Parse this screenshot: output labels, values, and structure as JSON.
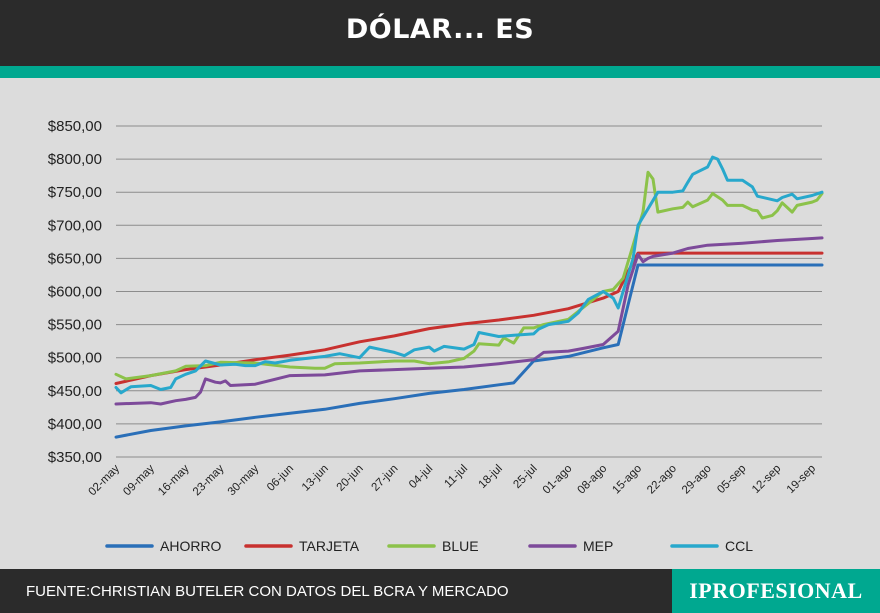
{
  "header": {
    "title": "DÓLAR... ES"
  },
  "footer": {
    "source": "FUENTE:CHRISTIAN BUTELER CON DATOS DEL BCRA Y MERCADO",
    "logo": "IPROFESIONAL"
  },
  "colors": {
    "header_bg": "#2b2b2b",
    "accent": "#00a890",
    "plot_bg": "#dcdcdc",
    "grid": "#8c8c8c"
  },
  "chart_data": {
    "type": "line",
    "title": "",
    "xlabel": "",
    "ylabel": "",
    "ylim": [
      350,
      850
    ],
    "yticks": [
      350,
      400,
      450,
      500,
      550,
      600,
      650,
      700,
      750,
      800,
      850
    ],
    "ytick_labels": [
      "$350,00",
      "$400,00",
      "$450,00",
      "$500,00",
      "$550,00",
      "$600,00",
      "$650,00",
      "$700,00",
      "$750,00",
      "$800,00",
      "$850,00"
    ],
    "xlim": [
      0,
      142
    ],
    "x_ticks": [
      {
        "label": "02-may",
        "x": 0
      },
      {
        "label": "09-may",
        "x": 7
      },
      {
        "label": "16-may",
        "x": 14
      },
      {
        "label": "23-may",
        "x": 21
      },
      {
        "label": "30-may",
        "x": 28
      },
      {
        "label": "06-jun",
        "x": 35
      },
      {
        "label": "13-jun",
        "x": 42
      },
      {
        "label": "20-jun",
        "x": 49
      },
      {
        "label": "27-jun",
        "x": 56
      },
      {
        "label": "04-jul",
        "x": 63
      },
      {
        "label": "11-jul",
        "x": 70
      },
      {
        "label": "18-jul",
        "x": 77
      },
      {
        "label": "25-jul",
        "x": 84
      },
      {
        "label": "01-ago",
        "x": 91
      },
      {
        "label": "08-ago",
        "x": 98
      },
      {
        "label": "15-ago",
        "x": 105
      },
      {
        "label": "22-ago",
        "x": 112
      },
      {
        "label": "29-ago",
        "x": 119
      },
      {
        "label": "05-sep",
        "x": 126
      },
      {
        "label": "12-sep",
        "x": 133
      },
      {
        "label": "19-sep",
        "x": 140
      }
    ],
    "grid": true,
    "legend": "bottom",
    "series": [
      {
        "name": "AHORRO",
        "color": "#2a6fb8",
        "points": [
          [
            0,
            380
          ],
          [
            7,
            390
          ],
          [
            14,
            397
          ],
          [
            21,
            403
          ],
          [
            28,
            410
          ],
          [
            35,
            416
          ],
          [
            42,
            422
          ],
          [
            49,
            431
          ],
          [
            56,
            438
          ],
          [
            63,
            446
          ],
          [
            70,
            452
          ],
          [
            77,
            459
          ],
          [
            80,
            462
          ],
          [
            84,
            495
          ],
          [
            91,
            502
          ],
          [
            98,
            515
          ],
          [
            101,
            520
          ],
          [
            103,
            580
          ],
          [
            105,
            640
          ],
          [
            112,
            640
          ],
          [
            119,
            640
          ],
          [
            126,
            640
          ],
          [
            133,
            640
          ],
          [
            142,
            640
          ]
        ]
      },
      {
        "name": "TARJETA",
        "color": "#c8312f",
        "points": [
          [
            0,
            461
          ],
          [
            7,
            473
          ],
          [
            14,
            482
          ],
          [
            21,
            489
          ],
          [
            28,
            497
          ],
          [
            35,
            504
          ],
          [
            42,
            512
          ],
          [
            49,
            524
          ],
          [
            56,
            533
          ],
          [
            63,
            544
          ],
          [
            70,
            551
          ],
          [
            77,
            557
          ],
          [
            84,
            564
          ],
          [
            91,
            574
          ],
          [
            98,
            590
          ],
          [
            101,
            600
          ],
          [
            103,
            630
          ],
          [
            105,
            658
          ],
          [
            112,
            658
          ],
          [
            119,
            658
          ],
          [
            126,
            658
          ],
          [
            133,
            658
          ],
          [
            142,
            658
          ]
        ]
      },
      {
        "name": "BLUE",
        "color": "#8cc24a",
        "points": [
          [
            0,
            475
          ],
          [
            2,
            468
          ],
          [
            7,
            473
          ],
          [
            12,
            480
          ],
          [
            14,
            487
          ],
          [
            18,
            488
          ],
          [
            21,
            493
          ],
          [
            28,
            492
          ],
          [
            35,
            486
          ],
          [
            40,
            484
          ],
          [
            42,
            484
          ],
          [
            44,
            491
          ],
          [
            49,
            492
          ],
          [
            56,
            495
          ],
          [
            60,
            495
          ],
          [
            63,
            491
          ],
          [
            67,
            494
          ],
          [
            70,
            499
          ],
          [
            72,
            510
          ],
          [
            73,
            521
          ],
          [
            77,
            519
          ],
          [
            78,
            530
          ],
          [
            80,
            522
          ],
          [
            82,
            545
          ],
          [
            84,
            545
          ],
          [
            86,
            550
          ],
          [
            91,
            558
          ],
          [
            95,
            582
          ],
          [
            98,
            600
          ],
          [
            100,
            603
          ],
          [
            102,
            620
          ],
          [
            104,
            670
          ],
          [
            106,
            720
          ],
          [
            107,
            780
          ],
          [
            108,
            770
          ],
          [
            109,
            720
          ],
          [
            112,
            725
          ],
          [
            114,
            727
          ],
          [
            115,
            735
          ],
          [
            116,
            728
          ],
          [
            119,
            738
          ],
          [
            120,
            748
          ],
          [
            122,
            738
          ],
          [
            123,
            730
          ],
          [
            126,
            730
          ],
          [
            128,
            723
          ],
          [
            129,
            722
          ],
          [
            130,
            711
          ],
          [
            132,
            715
          ],
          [
            133,
            722
          ],
          [
            134,
            734
          ],
          [
            136,
            720
          ],
          [
            137,
            730
          ],
          [
            140,
            735
          ],
          [
            141,
            738
          ],
          [
            142,
            748
          ]
        ]
      },
      {
        "name": "MEP",
        "color": "#7d4a9a",
        "points": [
          [
            0,
            430
          ],
          [
            7,
            432
          ],
          [
            9,
            430
          ],
          [
            12,
            435
          ],
          [
            14,
            437
          ],
          [
            16,
            440
          ],
          [
            17,
            448
          ],
          [
            18,
            468
          ],
          [
            20,
            463
          ],
          [
            21,
            462
          ],
          [
            22,
            465
          ],
          [
            23,
            458
          ],
          [
            28,
            460
          ],
          [
            35,
            473
          ],
          [
            42,
            474
          ],
          [
            49,
            480
          ],
          [
            56,
            482
          ],
          [
            63,
            484
          ],
          [
            70,
            486
          ],
          [
            77,
            491
          ],
          [
            84,
            497
          ],
          [
            86,
            508
          ],
          [
            91,
            510
          ],
          [
            94,
            514
          ],
          [
            98,
            520
          ],
          [
            101,
            540
          ],
          [
            103,
            610
          ],
          [
            105,
            656
          ],
          [
            106,
            645
          ],
          [
            107,
            650
          ],
          [
            108,
            653
          ],
          [
            112,
            658
          ],
          [
            115,
            665
          ],
          [
            119,
            670
          ],
          [
            126,
            673
          ],
          [
            133,
            677
          ],
          [
            140,
            680
          ],
          [
            142,
            681
          ]
        ]
      },
      {
        "name": "CCL",
        "color": "#28a8cc",
        "points": [
          [
            0,
            455
          ],
          [
            1,
            447
          ],
          [
            3,
            456
          ],
          [
            7,
            458
          ],
          [
            9,
            452
          ],
          [
            11,
            455
          ],
          [
            12,
            468
          ],
          [
            14,
            475
          ],
          [
            16,
            480
          ],
          [
            18,
            495
          ],
          [
            21,
            489
          ],
          [
            24,
            490
          ],
          [
            26,
            488
          ],
          [
            28,
            488
          ],
          [
            30,
            494
          ],
          [
            32,
            492
          ],
          [
            35,
            496
          ],
          [
            42,
            502
          ],
          [
            45,
            506
          ],
          [
            49,
            500
          ],
          [
            51,
            516
          ],
          [
            56,
            508
          ],
          [
            58,
            503
          ],
          [
            60,
            512
          ],
          [
            63,
            516
          ],
          [
            64,
            510
          ],
          [
            66,
            517
          ],
          [
            70,
            513
          ],
          [
            72,
            520
          ],
          [
            73,
            538
          ],
          [
            77,
            532
          ],
          [
            80,
            534
          ],
          [
            84,
            536
          ],
          [
            85,
            543
          ],
          [
            87,
            550
          ],
          [
            91,
            555
          ],
          [
            93,
            568
          ],
          [
            95,
            588
          ],
          [
            98,
            600
          ],
          [
            100,
            590
          ],
          [
            101,
            575
          ],
          [
            102,
            600
          ],
          [
            104,
            650
          ],
          [
            105,
            700
          ],
          [
            107,
            725
          ],
          [
            109,
            750
          ],
          [
            112,
            750
          ],
          [
            114,
            752
          ],
          [
            115,
            765
          ],
          [
            116,
            777
          ],
          [
            119,
            788
          ],
          [
            120,
            803
          ],
          [
            121,
            800
          ],
          [
            122,
            785
          ],
          [
            123,
            768
          ],
          [
            126,
            768
          ],
          [
            128,
            758
          ],
          [
            129,
            744
          ],
          [
            133,
            737
          ],
          [
            134,
            742
          ],
          [
            136,
            747
          ],
          [
            137,
            740
          ],
          [
            140,
            745
          ],
          [
            142,
            750
          ]
        ]
      }
    ]
  }
}
